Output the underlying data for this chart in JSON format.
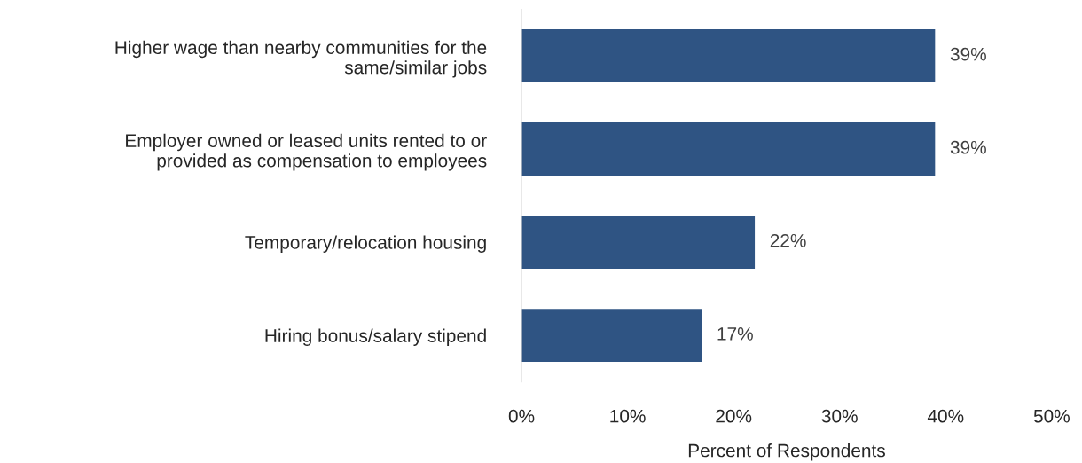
{
  "chart_data": {
    "type": "bar",
    "orientation": "horizontal",
    "categories": [
      "Higher wage than nearby communities for the\nsame/similar jobs",
      "Employer owned or leased units rented to or\nprovided as compensation to employees",
      "Temporary/relocation housing",
      "Hiring bonus/salary stipend"
    ],
    "values": [
      39,
      39,
      22,
      17
    ],
    "color": "#2f5483",
    "value_labels": [
      "39%",
      "39%",
      "22%",
      "17%"
    ],
    "xlim": [
      0,
      50
    ],
    "xticks": [
      {
        "value": 0,
        "label": "0%"
      },
      {
        "value": 10,
        "label": "10%"
      },
      {
        "value": 20,
        "label": "20%"
      },
      {
        "value": 30,
        "label": "30%"
      },
      {
        "value": 40,
        "label": "40%"
      },
      {
        "value": 50,
        "label": "50%"
      }
    ],
    "xlabel": "Percent of Respondents",
    "grid": false
  }
}
